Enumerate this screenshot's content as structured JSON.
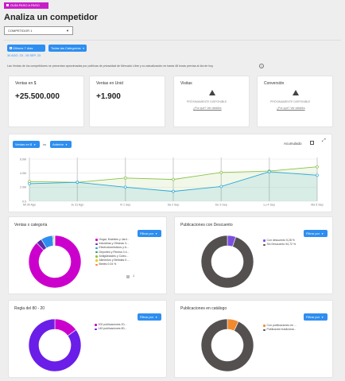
{
  "header": {
    "guide_button": "GUÍA PASO A PASO",
    "title": "Analiza un competidor",
    "competitor_select": "COMPETIDOR 1"
  },
  "filters": {
    "period": "Últimos 7 días",
    "category": "Todas las Categorías",
    "date_range": "30 AGO. 23 - 05 SEP. 23",
    "note": "Las Ventas de los competidores se presentan aproximadas por políticas de privacidad de Mercado Libre y su actualización es hasta 48 horas previas al día de hoy"
  },
  "kpis": {
    "sales_money": {
      "label": "Ventas en $",
      "value": "+25.500.000"
    },
    "sales_units": {
      "label": "Ventas en Unid",
      "value": "+1.900"
    },
    "visits": {
      "label": "Visitas",
      "status": "PRÓXIMAMENTE DISPONIBLE",
      "link": "¿Por qué? Ver detalles"
    },
    "conversion": {
      "label": "Conversión",
      "status": "PRÓXIMAMENTE DISPONIBLE",
      "link": "¿Por qué? Ver detalles"
    }
  },
  "line_section": {
    "metric_select": "Ventas en $",
    "vs_label": "vs",
    "compare_select": "Anterior",
    "accumulated_label": "Acumulado",
    "colors": {
      "current": "#8bc34a",
      "previous": "#29a8d8"
    }
  },
  "chart_data": [
    {
      "type": "area",
      "categories": [
        "Mi 30 Ago",
        "Ju 31 Ago",
        "Vi 1 Sep",
        "Sa 2 Sep",
        "Do 3 Sep",
        "Lu 4 Sep",
        "Ma 5 Sep"
      ],
      "yticks": [
        "6.0M",
        "4.0M",
        "2.0M",
        "0.0"
      ],
      "ylim": [
        0,
        6000000
      ],
      "series": [
        {
          "values": [
            2800000,
            2700000,
            3300000,
            3100000,
            4100000,
            4300000,
            4900000
          ]
        },
        {
          "values": [
            2500000,
            2700000,
            2000000,
            1400000,
            2100000,
            4200000,
            3700000
          ]
        }
      ]
    },
    {
      "type": "pie",
      "title": "Ventas x categoría",
      "labels": [
        "Hogar, Muebles y Jard...",
        "Industrias y Oficinas 3...",
        "Electrodomésticos y A...",
        "Deportes y Fitness 0.4...",
        "Antigüedades y Colec...",
        "Alimentos y Bebidas 0....",
        "Bebés 0.04 %"
      ],
      "values": [
        87.0,
        3.5,
        7.2,
        0.5,
        0.6,
        0.3,
        0.04
      ],
      "colors": [
        "#cc00cc",
        "#5a2ea6",
        "#2e8ef0",
        "#2a9d5c",
        "#8bc34a",
        "#f5c400",
        "#f08a2e"
      ],
      "pagination": "1"
    },
    {
      "type": "pie",
      "title": "Publicaciones con Descuento",
      "labels": [
        "Con descuento 5,28 %",
        "Sin Descuento 94,72 %"
      ],
      "values": [
        5.28,
        94.72
      ],
      "colors": [
        "#7b4fe0",
        "#555050"
      ]
    },
    {
      "type": "pie",
      "title": "Regla del 80 - 20",
      "labels": [
        "202 publicaciones 20...",
        "149 publicaciones 80..."
      ],
      "values": [
        15,
        85
      ],
      "colors": [
        "#cc00cc",
        "#6a1ee8"
      ]
    },
    {
      "type": "pie",
      "title": "Publicaciones en catálogo",
      "labels": [
        "Con publicaciones en ...",
        "Publicación tradiciona..."
      ],
      "values": [
        7,
        93
      ],
      "colors": [
        "#f08a2e",
        "#555050"
      ]
    }
  ],
  "filter_button": "Filtrar por"
}
